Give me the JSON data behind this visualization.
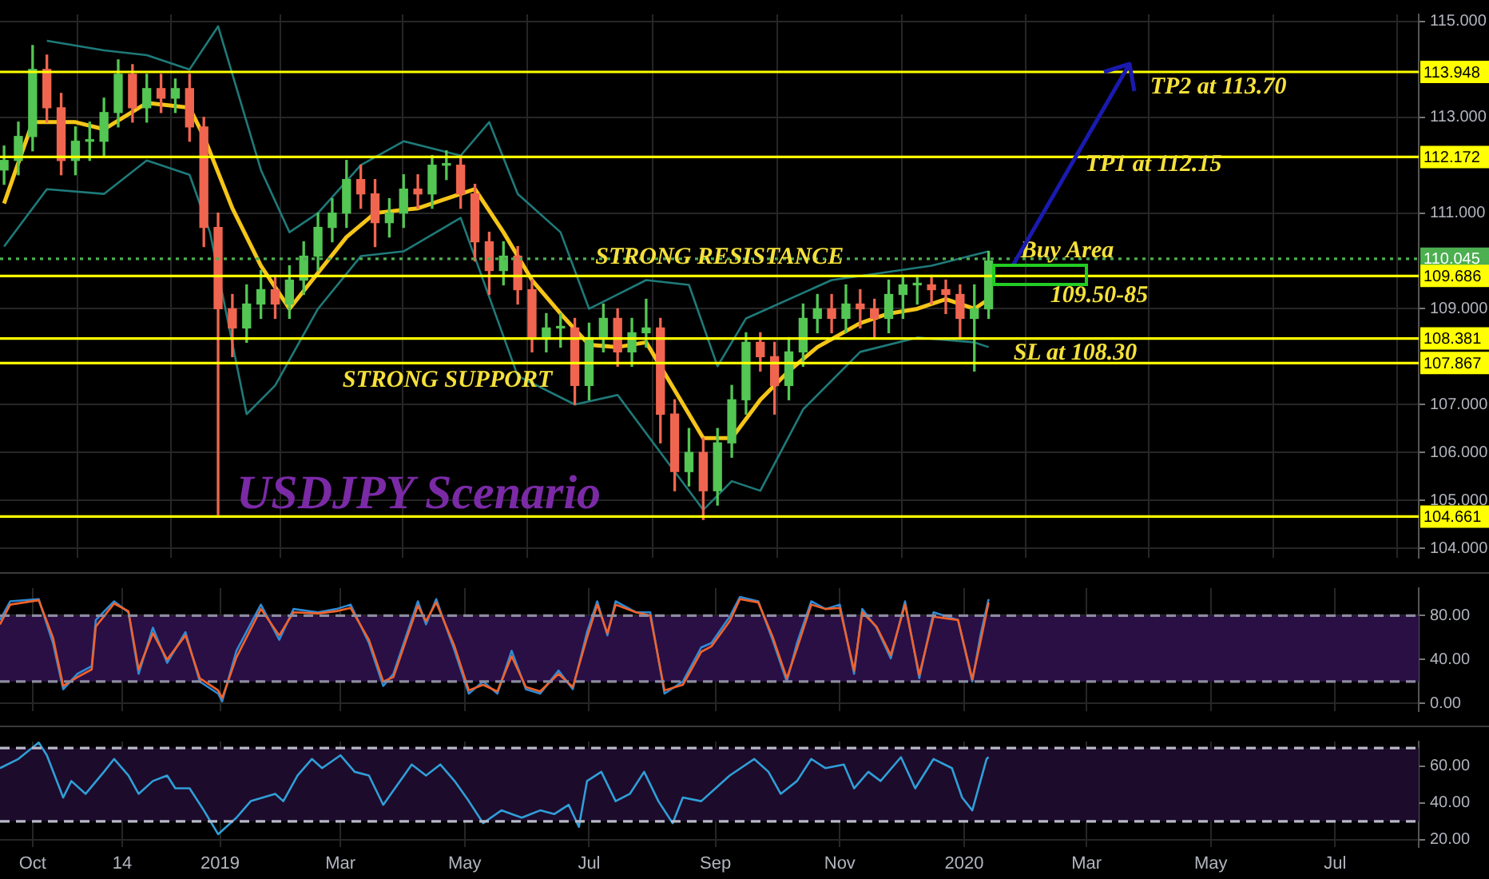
{
  "chart_data": [
    {
      "type": "candlestick",
      "x": [
        "2018-09-17",
        "2018-09-24",
        "2018-10-01",
        "2018-10-08",
        "2018-10-15",
        "2018-10-22",
        "2018-10-29",
        "2018-11-05",
        "2018-11-12",
        "2018-11-19",
        "2018-11-26",
        "2018-12-03",
        "2018-12-10",
        "2018-12-17",
        "2018-12-24",
        "2018-12-31",
        "2019-01-07",
        "2019-01-14",
        "2019-01-21",
        "2019-01-28",
        "2019-02-04",
        "2019-02-11",
        "2019-02-18",
        "2019-02-25",
        "2019-03-04",
        "2019-03-11",
        "2019-03-18",
        "2019-03-25",
        "2019-04-01",
        "2019-04-08",
        "2019-04-15",
        "2019-04-22",
        "2019-04-29",
        "2019-05-06",
        "2019-05-13",
        "2019-05-20",
        "2019-05-27",
        "2019-06-03",
        "2019-06-10",
        "2019-06-17",
        "2019-06-24",
        "2019-07-01",
        "2019-07-08",
        "2019-07-15",
        "2019-07-22",
        "2019-07-29",
        "2019-08-05",
        "2019-08-12",
        "2019-08-19",
        "2019-08-26",
        "2019-09-02",
        "2019-09-09",
        "2019-09-16",
        "2019-09-23",
        "2019-09-30",
        "2019-10-07",
        "2019-10-14",
        "2019-10-21",
        "2019-10-28",
        "2019-11-04",
        "2019-11-11",
        "2019-11-18",
        "2019-11-25",
        "2019-12-02",
        "2019-12-09",
        "2019-12-16",
        "2019-12-23",
        "2019-12-30",
        "2020-01-06",
        "2020-01-13"
      ],
      "ohlc": [
        [
          111.9,
          112.4,
          111.6,
          112.1
        ],
        [
          112.1,
          112.9,
          111.8,
          112.6
        ],
        [
          112.6,
          114.5,
          112.3,
          114.0
        ],
        [
          114.0,
          114.3,
          112.9,
          113.2
        ],
        [
          113.2,
          113.5,
          111.8,
          112.1
        ],
        [
          112.1,
          112.8,
          111.8,
          112.5
        ],
        [
          112.5,
          112.9,
          112.1,
          112.5
        ],
        [
          112.5,
          113.4,
          112.2,
          113.1
        ],
        [
          113.1,
          114.2,
          112.8,
          113.9
        ],
        [
          113.9,
          114.1,
          112.9,
          113.2
        ],
        [
          113.2,
          113.9,
          112.9,
          113.6
        ],
        [
          113.6,
          113.9,
          113.1,
          113.4
        ],
        [
          113.4,
          113.8,
          113.1,
          113.6
        ],
        [
          113.6,
          113.9,
          112.5,
          112.8
        ],
        [
          112.8,
          113.0,
          110.3,
          110.7
        ],
        [
          110.7,
          111.0,
          104.7,
          109.0
        ],
        [
          109.0,
          109.3,
          108.0,
          108.6
        ],
        [
          108.6,
          109.5,
          108.3,
          109.1
        ],
        [
          109.1,
          109.8,
          108.8,
          109.4
        ],
        [
          109.4,
          109.7,
          108.8,
          109.1
        ],
        [
          109.1,
          109.9,
          108.8,
          109.6
        ],
        [
          109.6,
          110.4,
          109.3,
          110.1
        ],
        [
          110.1,
          111.0,
          109.8,
          110.7
        ],
        [
          110.7,
          111.3,
          110.4,
          111.0
        ],
        [
          111.0,
          112.1,
          110.7,
          111.7
        ],
        [
          111.7,
          112.0,
          111.1,
          111.4
        ],
        [
          111.4,
          111.7,
          110.3,
          110.8
        ],
        [
          110.8,
          111.3,
          110.5,
          111.0
        ],
        [
          111.0,
          111.8,
          110.7,
          111.5
        ],
        [
          111.5,
          111.8,
          111.1,
          111.4
        ],
        [
          111.4,
          112.2,
          111.1,
          112.0
        ],
        [
          112.0,
          112.3,
          111.7,
          112.0
        ],
        [
          112.0,
          112.2,
          111.1,
          111.4
        ],
        [
          111.4,
          111.6,
          110.0,
          110.4
        ],
        [
          110.4,
          110.6,
          109.3,
          109.8
        ],
        [
          109.8,
          110.4,
          109.5,
          110.1
        ],
        [
          110.1,
          110.3,
          109.1,
          109.4
        ],
        [
          109.4,
          109.6,
          108.1,
          108.4
        ],
        [
          108.4,
          108.9,
          108.1,
          108.6
        ],
        [
          108.6,
          108.9,
          108.2,
          108.6
        ],
        [
          108.6,
          108.8,
          107.0,
          107.4
        ],
        [
          107.4,
          108.7,
          107.1,
          108.4
        ],
        [
          108.4,
          109.1,
          108.1,
          108.8
        ],
        [
          108.8,
          109.0,
          107.8,
          108.1
        ],
        [
          108.1,
          108.8,
          107.8,
          108.5
        ],
        [
          108.5,
          109.2,
          108.2,
          108.6
        ],
        [
          108.6,
          108.8,
          106.2,
          106.8
        ],
        [
          106.8,
          107.1,
          105.2,
          105.6
        ],
        [
          105.6,
          106.5,
          105.3,
          106.0
        ],
        [
          106.0,
          106.3,
          104.6,
          105.2
        ],
        [
          105.2,
          106.5,
          104.9,
          106.2
        ],
        [
          106.2,
          107.4,
          105.9,
          107.1
        ],
        [
          107.1,
          108.5,
          106.8,
          108.3
        ],
        [
          108.3,
          108.5,
          107.7,
          108.0
        ],
        [
          108.0,
          108.3,
          106.8,
          107.4
        ],
        [
          107.4,
          108.4,
          107.1,
          108.1
        ],
        [
          108.1,
          109.1,
          107.8,
          108.8
        ],
        [
          108.8,
          109.3,
          108.5,
          109.0
        ],
        [
          109.0,
          109.3,
          108.5,
          108.8
        ],
        [
          108.8,
          109.5,
          108.5,
          109.1
        ],
        [
          109.1,
          109.4,
          108.6,
          109.0
        ],
        [
          109.0,
          109.2,
          108.4,
          108.8
        ],
        [
          108.8,
          109.6,
          108.5,
          109.3
        ],
        [
          109.3,
          109.7,
          108.8,
          109.5
        ],
        [
          109.5,
          109.7,
          109.1,
          109.5
        ],
        [
          109.5,
          109.7,
          109.1,
          109.4
        ],
        [
          109.4,
          109.6,
          108.9,
          109.3
        ],
        [
          109.3,
          109.5,
          108.4,
          108.8
        ],
        [
          108.8,
          109.5,
          107.7,
          109.0
        ],
        [
          109.0,
          110.2,
          108.8,
          110.0
        ]
      ],
      "colors": [
        "#53c653",
        "#53c653",
        "#53c653",
        "#f0654f",
        "#f0654f",
        "#53c653",
        "#53c653",
        "#53c653",
        "#53c653",
        "#f0654f",
        "#53c653",
        "#f0654f",
        "#53c653",
        "#f0654f",
        "#f0654f",
        "#f0654f",
        "#f0654f",
        "#53c653",
        "#53c653",
        "#f0654f",
        "#53c653",
        "#53c653",
        "#53c653",
        "#53c653",
        "#53c653",
        "#f0654f",
        "#f0654f",
        "#53c653",
        "#53c653",
        "#f0654f",
        "#53c653",
        "#53c653",
        "#f0654f",
        "#f0654f",
        "#f0654f",
        "#53c653",
        "#f0654f",
        "#f0654f",
        "#53c653",
        "#53c653",
        "#f0654f",
        "#53c653",
        "#53c653",
        "#f0654f",
        "#53c653",
        "#53c653",
        "#f0654f",
        "#f0654f",
        "#53c653",
        "#f0654f",
        "#53c653",
        "#53c653",
        "#53c653",
        "#f0654f",
        "#f0654f",
        "#53c653",
        "#53c653",
        "#53c653",
        "#f0654f",
        "#53c653",
        "#f0654f",
        "#f0654f",
        "#53c653",
        "#53c653",
        "#53c653",
        "#f0654f",
        "#f0654f",
        "#f0654f",
        "#53c653",
        "#53c653"
      ],
      "series": [
        {
          "type": "line",
          "color": "#1f7a7a",
          "x": [
            "2018-10-08",
            "2018-11-05",
            "2018-11-26",
            "2018-12-17",
            "2018-12-31",
            "2019-01-21",
            "2019-02-04",
            "2019-02-18",
            "2019-03-11",
            "2019-04-01",
            "2019-04-29",
            "2019-05-13",
            "2019-05-27",
            "2019-06-17",
            "2019-07-01",
            "2019-07-29",
            "2019-08-19",
            "2019-09-02",
            "2019-09-16",
            "2019-10-28",
            "2019-12-16",
            "2020-01-13"
          ],
          "values": [
            114.6,
            114.4,
            114.3,
            114.0,
            114.9,
            111.9,
            110.6,
            111.0,
            112.0,
            112.5,
            112.2,
            112.9,
            111.4,
            110.6,
            109.0,
            109.6,
            109.5,
            107.8,
            108.8,
            109.6,
            109.9,
            110.2
          ]
        },
        {
          "type": "line",
          "color": "#1f7a7a",
          "x": [
            "2018-09-17",
            "2018-10-08",
            "2018-11-05",
            "2018-11-26",
            "2018-12-17",
            "2018-12-27",
            "2019-01-14",
            "2019-01-28",
            "2019-02-18",
            "2019-03-11",
            "2019-04-01",
            "2019-04-29",
            "2019-05-27",
            "2019-06-24",
            "2019-07-15",
            "2019-08-05",
            "2019-08-26",
            "2019-09-09",
            "2019-09-23",
            "2019-10-14",
            "2019-11-11",
            "2019-12-09",
            "2020-01-06",
            "2020-01-13"
          ],
          "values": [
            110.3,
            111.5,
            111.4,
            112.1,
            111.8,
            110.6,
            106.8,
            107.4,
            109.0,
            110.1,
            110.2,
            110.9,
            107.6,
            107.0,
            107.2,
            106.0,
            104.8,
            105.4,
            105.2,
            106.9,
            108.1,
            108.4,
            108.3,
            108.2
          ]
        },
        {
          "type": "line",
          "color": "#f5c518",
          "x": [
            "2018-09-17",
            "2018-10-01",
            "2018-10-22",
            "2018-11-05",
            "2018-11-26",
            "2018-12-17",
            "2018-12-24",
            "2019-01-07",
            "2019-01-21",
            "2019-02-04",
            "2019-02-18",
            "2019-03-04",
            "2019-03-18",
            "2019-04-08",
            "2019-04-22",
            "2019-05-06",
            "2019-05-20",
            "2019-06-03",
            "2019-06-17",
            "2019-07-01",
            "2019-07-15",
            "2019-07-29",
            "2019-08-12",
            "2019-08-26",
            "2019-09-09",
            "2019-09-23",
            "2019-10-07",
            "2019-10-21",
            "2019-11-11",
            "2019-11-25",
            "2019-12-09",
            "2019-12-23",
            "2020-01-06",
            "2020-01-13"
          ],
          "values": [
            111.2,
            112.9,
            112.9,
            112.75,
            113.3,
            113.2,
            112.6,
            111.1,
            109.9,
            109.0,
            109.75,
            110.5,
            111.0,
            111.1,
            111.3,
            111.5,
            110.6,
            109.6,
            108.9,
            108.25,
            108.2,
            108.3,
            107.3,
            106.3,
            106.3,
            107.1,
            107.7,
            108.2,
            108.7,
            108.9,
            109.0,
            109.2,
            109.0,
            109.2
          ]
        }
      ],
      "xlim": [
        "2018-09-15",
        "2020-08-11"
      ],
      "xticks": [
        {
          "value": "2018-10-01",
          "label": null
        },
        {
          "value": "2018-11-14",
          "label": null
        },
        {
          "value": "2019-01-01",
          "label": null
        },
        {
          "value": "2019-03-01",
          "label": null
        },
        {
          "value": "2019-05-01",
          "label": null
        },
        {
          "value": "2019-07-01",
          "label": null
        },
        {
          "value": "2019-09-01",
          "label": null
        },
        {
          "value": "2019-11-01",
          "label": null
        },
        {
          "value": "2020-01-01",
          "label": null
        },
        {
          "value": "2020-03-01",
          "label": null
        },
        {
          "value": "2020-05-01",
          "label": null
        },
        {
          "value": "2020-07-01",
          "label": null
        }
      ],
      "ylim": [
        103.8,
        115.15
      ],
      "yticks": [
        {
          "value": 104,
          "label": "104.000"
        },
        {
          "value": 105,
          "label": "105.000"
        },
        {
          "value": 106,
          "label": "106.000"
        },
        {
          "value": 107,
          "label": "107.000"
        },
        {
          "value": 109,
          "label": "109.000"
        },
        {
          "value": 111,
          "label": "111.000"
        },
        {
          "value": 113,
          "label": "113.000"
        },
        {
          "value": 115,
          "label": "115.000"
        }
      ],
      "tick_labels": "y",
      "grid": true,
      "legend": false,
      "ref_lines": [
        {
          "axis": "y",
          "value": 113.948,
          "label": "113.948",
          "color": "#ffff00"
        },
        {
          "axis": "y",
          "value": 112.172,
          "label": "112.172",
          "color": "#ffff00"
        },
        {
          "axis": "y",
          "value": 110.045,
          "label": "110.045",
          "color": "#4caf50",
          "line_style": "dotted"
        },
        {
          "axis": "y",
          "value": 109.686,
          "label": "109.686",
          "color": "#ffff00"
        },
        {
          "axis": "y",
          "value": 108.381,
          "label": "108.381",
          "color": "#ffff00"
        },
        {
          "axis": "y",
          "value": 107.867,
          "label": "107.867",
          "color": "#ffff00"
        },
        {
          "axis": "y",
          "value": 104.661,
          "label": "104.661",
          "color": "#ffff00"
        }
      ],
      "annotations": [
        {
          "text": "STRONG RESISTANCE",
          "x": "2019-09-03",
          "y": 110.08
        },
        "STRONG SUPPORT",
        "USDJPY Scenario",
        {
          "text": "TP2 at 113.70",
          "x": "2020-03-21",
          "y": 113.9
        },
        "TP1 at 112.15",
        "Buy Area",
        "109.50-85",
        "SL at 108.30"
      ]
    },
    {
      "type": "line",
      "x": [
        "2018-09-15",
        "2018-09-20",
        "2018-10-04",
        "2018-10-11",
        "2018-10-16",
        "2018-10-23",
        "2018-10-30",
        "2018-11-01",
        "2018-11-10",
        "2018-11-17",
        "2018-11-22",
        "2018-11-29",
        "2018-12-06",
        "2018-12-15",
        "2018-12-22",
        "2018-12-31",
        "2019-01-02",
        "2019-01-09",
        "2019-01-21",
        "2019-01-30",
        "2019-02-06",
        "2019-02-18",
        "2019-02-27",
        "2019-03-06",
        "2019-03-15",
        "2019-03-22",
        "2019-03-27",
        "2019-04-08",
        "2019-04-12",
        "2019-04-17",
        "2019-04-26",
        "2019-05-03",
        "2019-05-10",
        "2019-05-17",
        "2019-05-24",
        "2019-05-31",
        "2019-06-07",
        "2019-06-16",
        "2019-06-23",
        "2019-06-30",
        "2019-07-05",
        "2019-07-10",
        "2019-07-14",
        "2019-07-24",
        "2019-07-31",
        "2019-08-07",
        "2019-08-16",
        "2019-08-25",
        "2019-08-30",
        "2019-09-08",
        "2019-09-13",
        "2019-09-22",
        "2019-09-29",
        "2019-10-06",
        "2019-10-11",
        "2019-10-18",
        "2019-10-25",
        "2019-11-01",
        "2019-11-08",
        "2019-11-12",
        "2019-11-19",
        "2019-11-26",
        "2019-12-03",
        "2019-12-10",
        "2019-12-17",
        "2019-12-29",
        "2020-01-05",
        "2020-01-09",
        "2020-01-13"
      ],
      "series": [
        {
          "color": "#f2622a",
          "values": [
            72,
            90,
            94,
            60,
            16,
            24,
            31,
            70,
            91,
            84,
            31,
            64,
            40,
            62,
            23,
            12,
            5,
            42,
            86,
            62,
            83,
            82,
            84,
            87,
            58,
            20,
            24,
            89,
            75,
            92,
            52,
            12,
            17,
            11,
            43,
            15,
            11,
            27,
            15,
            60,
            90,
            64,
            90,
            83,
            80,
            12,
            17,
            47,
            52,
            75,
            95,
            92,
            61,
            23,
            50,
            90,
            86,
            87,
            30,
            83,
            70,
            44,
            90,
            26,
            79,
            76,
            22,
            56,
            92
          ]
        },
        {
          "color": "#2e8bd6",
          "values": [
            76,
            93,
            95,
            55,
            13,
            27,
            34,
            76,
            93,
            83,
            27,
            69,
            37,
            65,
            20,
            9,
            2,
            48,
            90,
            58,
            86,
            83,
            86,
            90,
            55,
            16,
            27,
            93,
            72,
            95,
            48,
            9,
            20,
            9,
            48,
            13,
            9,
            30,
            13,
            65,
            93,
            62,
            93,
            83,
            83,
            9,
            20,
            51,
            55,
            79,
            97,
            93,
            58,
            20,
            55,
            93,
            86,
            90,
            27,
            86,
            69,
            41,
            93,
            23,
            83,
            76,
            20,
            62,
            95
          ]
        }
      ],
      "xlim": [
        "2018-09-15",
        "2020-08-11"
      ],
      "xticks": [
        {
          "value": "2018-10-01",
          "label": null
        },
        {
          "value": "2018-11-14",
          "label": null
        },
        {
          "value": "2019-01-01",
          "label": null
        },
        {
          "value": "2019-03-01",
          "label": null
        },
        {
          "value": "2019-05-01",
          "label": null
        },
        {
          "value": "2019-07-01",
          "label": null
        },
        {
          "value": "2019-09-01",
          "label": null
        },
        {
          "value": "2019-11-01",
          "label": null
        },
        {
          "value": "2020-01-01",
          "label": null
        },
        {
          "value": "2020-03-01",
          "label": null
        },
        {
          "value": "2020-05-01",
          "label": null
        },
        {
          "value": "2020-07-01",
          "label": null
        }
      ],
      "ylim": [
        -7,
        105
      ],
      "yticks": [
        {
          "value": 0,
          "label": "0.00"
        },
        {
          "value": 40,
          "label": "40.00"
        },
        {
          "value": 80,
          "label": "80.00"
        }
      ],
      "tick_labels": "y",
      "grid": true,
      "legend": false,
      "bands": [
        {
          "axis": "y",
          "from": 20,
          "to": 80,
          "color": "#2a0f44"
        }
      ],
      "ref_lines": [
        {
          "axis": "y",
          "value": 80,
          "color": "#8c8ca0",
          "line_style": "dashed"
        },
        {
          "axis": "y",
          "value": 20,
          "color": "#8c8ca0",
          "line_style": "dashed"
        }
      ]
    },
    {
      "type": "line",
      "x": [
        "2018-09-15",
        "2018-09-24",
        "2018-10-04",
        "2018-10-08",
        "2018-10-16",
        "2018-10-20",
        "2018-10-27",
        "2018-11-05",
        "2018-11-10",
        "2018-11-17",
        "2018-11-22",
        "2018-11-29",
        "2018-12-06",
        "2018-12-10",
        "2018-12-17",
        "2018-12-24",
        "2018-12-31",
        "2019-01-09",
        "2019-01-16",
        "2019-01-28",
        "2019-02-01",
        "2019-02-08",
        "2019-02-15",
        "2019-02-20",
        "2019-03-01",
        "2019-03-08",
        "2019-03-15",
        "2019-03-22",
        "2019-03-29",
        "2019-04-05",
        "2019-04-12",
        "2019-04-19",
        "2019-04-26",
        "2019-05-03",
        "2019-05-10",
        "2019-05-19",
        "2019-05-29",
        "2019-06-07",
        "2019-06-14",
        "2019-06-21",
        "2019-06-26",
        "2019-06-30",
        "2019-07-07",
        "2019-07-14",
        "2019-07-21",
        "2019-07-28",
        "2019-08-04",
        "2019-08-11",
        "2019-08-16",
        "2019-08-25",
        "2019-09-03",
        "2019-09-08",
        "2019-09-20",
        "2019-09-27",
        "2019-10-03",
        "2019-10-11",
        "2019-10-18",
        "2019-10-25",
        "2019-11-03",
        "2019-11-08",
        "2019-11-15",
        "2019-11-21",
        "2019-12-01",
        "2019-12-08",
        "2019-12-17",
        "2019-12-26",
        "2019-12-31",
        "2020-01-05",
        "2020-01-12",
        "2020-01-13"
      ],
      "series": [
        {
          "color": "#2f9fd8",
          "values": [
            59,
            64,
            73,
            66,
            43,
            52,
            45,
            57,
            64,
            55,
            45,
            52,
            55,
            48,
            48,
            36,
            23,
            32,
            41,
            45,
            41,
            55,
            64,
            59,
            66,
            57,
            55,
            39,
            50,
            61,
            55,
            61,
            52,
            41,
            29,
            36,
            32,
            36,
            34,
            39,
            27,
            52,
            57,
            41,
            45,
            57,
            41,
            29,
            43,
            41,
            50,
            55,
            64,
            57,
            45,
            52,
            64,
            59,
            61,
            48,
            57,
            52,
            65,
            48,
            64,
            59,
            43,
            36,
            64,
            65
          ]
        }
      ],
      "xlim": [
        "2018-09-15",
        "2020-08-11"
      ],
      "xticks": [
        {
          "value": "2018-10-01",
          "label": "Oct"
        },
        {
          "value": "2018-11-14",
          "label": "14"
        },
        {
          "value": "2019-01-01",
          "label": "2019"
        },
        {
          "value": "2019-03-01",
          "label": "Mar"
        },
        {
          "value": "2019-05-01",
          "label": "May"
        },
        {
          "value": "2019-07-01",
          "label": "Jul"
        },
        {
          "value": "2019-09-01",
          "label": "Sep"
        },
        {
          "value": "2019-11-01",
          "label": "Nov"
        },
        {
          "value": "2020-01-01",
          "label": "2020"
        },
        {
          "value": "2020-03-01",
          "label": "Mar"
        },
        {
          "value": "2020-05-01",
          "label": "May"
        },
        {
          "value": "2020-07-01",
          "label": "Jul"
        }
      ],
      "ylim": [
        16,
        73.5
      ],
      "yticks": [
        {
          "value": 20,
          "label": "20.00"
        },
        {
          "value": 40,
          "label": "40.00"
        },
        {
          "value": 60,
          "label": "60.00"
        }
      ],
      "grid": true,
      "legend": false,
      "bands": [
        {
          "axis": "y",
          "from": 30,
          "to": 70,
          "color": "#1d0b2b"
        }
      ],
      "ref_lines": [
        {
          "axis": "y",
          "value": 70,
          "color": "#b8b8c8",
          "line_style": "dashed"
        },
        {
          "axis": "y",
          "value": 30,
          "color": "#b8b8c8",
          "line_style": "dashed"
        }
      ]
    }
  ]
}
